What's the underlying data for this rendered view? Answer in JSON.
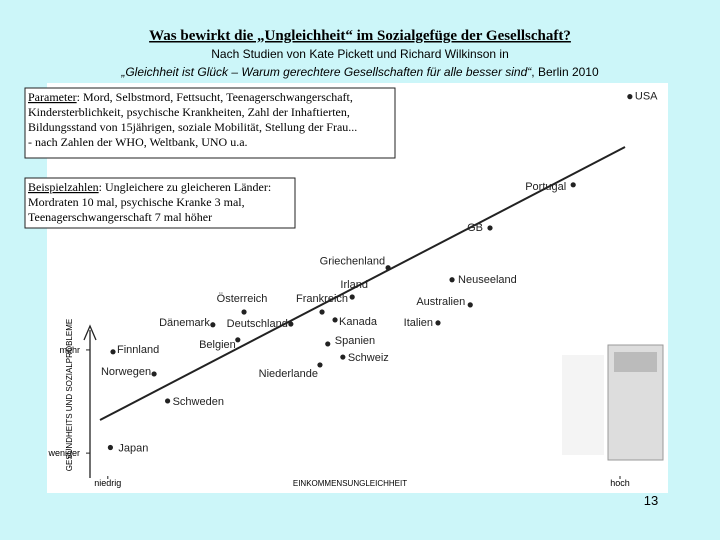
{
  "header": {
    "title": "Was bewirkt die „Ungleichheit“ im Sozialgefüge der Gesellschaft?",
    "subtitle": "Nach Studien von Kate Pickett und Richard Wilkinson in",
    "source_italic": "„Gleichheit ist Glück – Warum gerechtere Gesellschaften für alle besser sind“",
    "source_rest": ", Berlin 2010"
  },
  "boxes": [
    {
      "label": "Parameter",
      "lines": [
        ": Mord, Selbstmord, Fettsucht, Teenagerschwangerschaft,",
        "Kindersterblichkeit, psychische Krankheiten, Zahl der Inhaftierten,",
        "Bildungsstand von 15jährigen, soziale Mobilität, Stellung der Frau...",
        "- nach Zahlen der WHO, Weltbank, UNO u.a."
      ]
    },
    {
      "label": "Beispielzahlen",
      "lines": [
        ": Ungleichere zu gleicheren Länder:",
        "Mordraten 10 mal, psychische Kranke 3 mal,",
        "Teenagerschwangerschaft 7 mal höher"
      ]
    }
  ],
  "chart_data": {
    "type": "scatter",
    "x_label": "EINKOMMENSUNGLEICHHEIT",
    "y_label": "GESUNDHEITS UND SOZIALPROBLEME",
    "labels": [
      "Japan",
      "Schweden",
      "Norwegen",
      "Finnland",
      "Dänemark",
      "Deutschland",
      "Belgien",
      "Österreich",
      "Frankreich",
      "Niederlande",
      "Schweiz",
      "Spanien",
      "Kanada",
      "Irland",
      "Griechenland",
      "Neuseeland",
      "Australien",
      "Italien",
      "GB",
      "Portugal",
      "USA"
    ],
    "x": [
      2,
      13,
      10.4,
      2.5,
      21.7,
      36.7,
      26.5,
      27.7,
      42.7,
      42.3,
      46.7,
      43.8,
      45.2,
      48.5,
      55.4,
      67.7,
      71.2,
      65,
      75,
      91,
      101.9
    ],
    "values": [
      6,
      18.4,
      25.6,
      31.5,
      38.7,
      38.9,
      34.7,
      42.1,
      42.1,
      28,
      30.1,
      33.6,
      40,
      46.1,
      53.9,
      50.7,
      44,
      39.2,
      64.5,
      76,
      99.5
    ],
    "color": "#222222",
    "xlim": [
      0,
      105
    ],
    "ylim": [
      0,
      105
    ],
    "xticks": [
      {
        "value": 1.5,
        "label": "niedrig"
      },
      {
        "value": 100,
        "label": "hoch"
      }
    ],
    "yticks": [
      {
        "value": 4.5,
        "label": "weniger"
      },
      {
        "value": 32,
        "label": "mehr"
      }
    ]
  },
  "page_number": "13"
}
